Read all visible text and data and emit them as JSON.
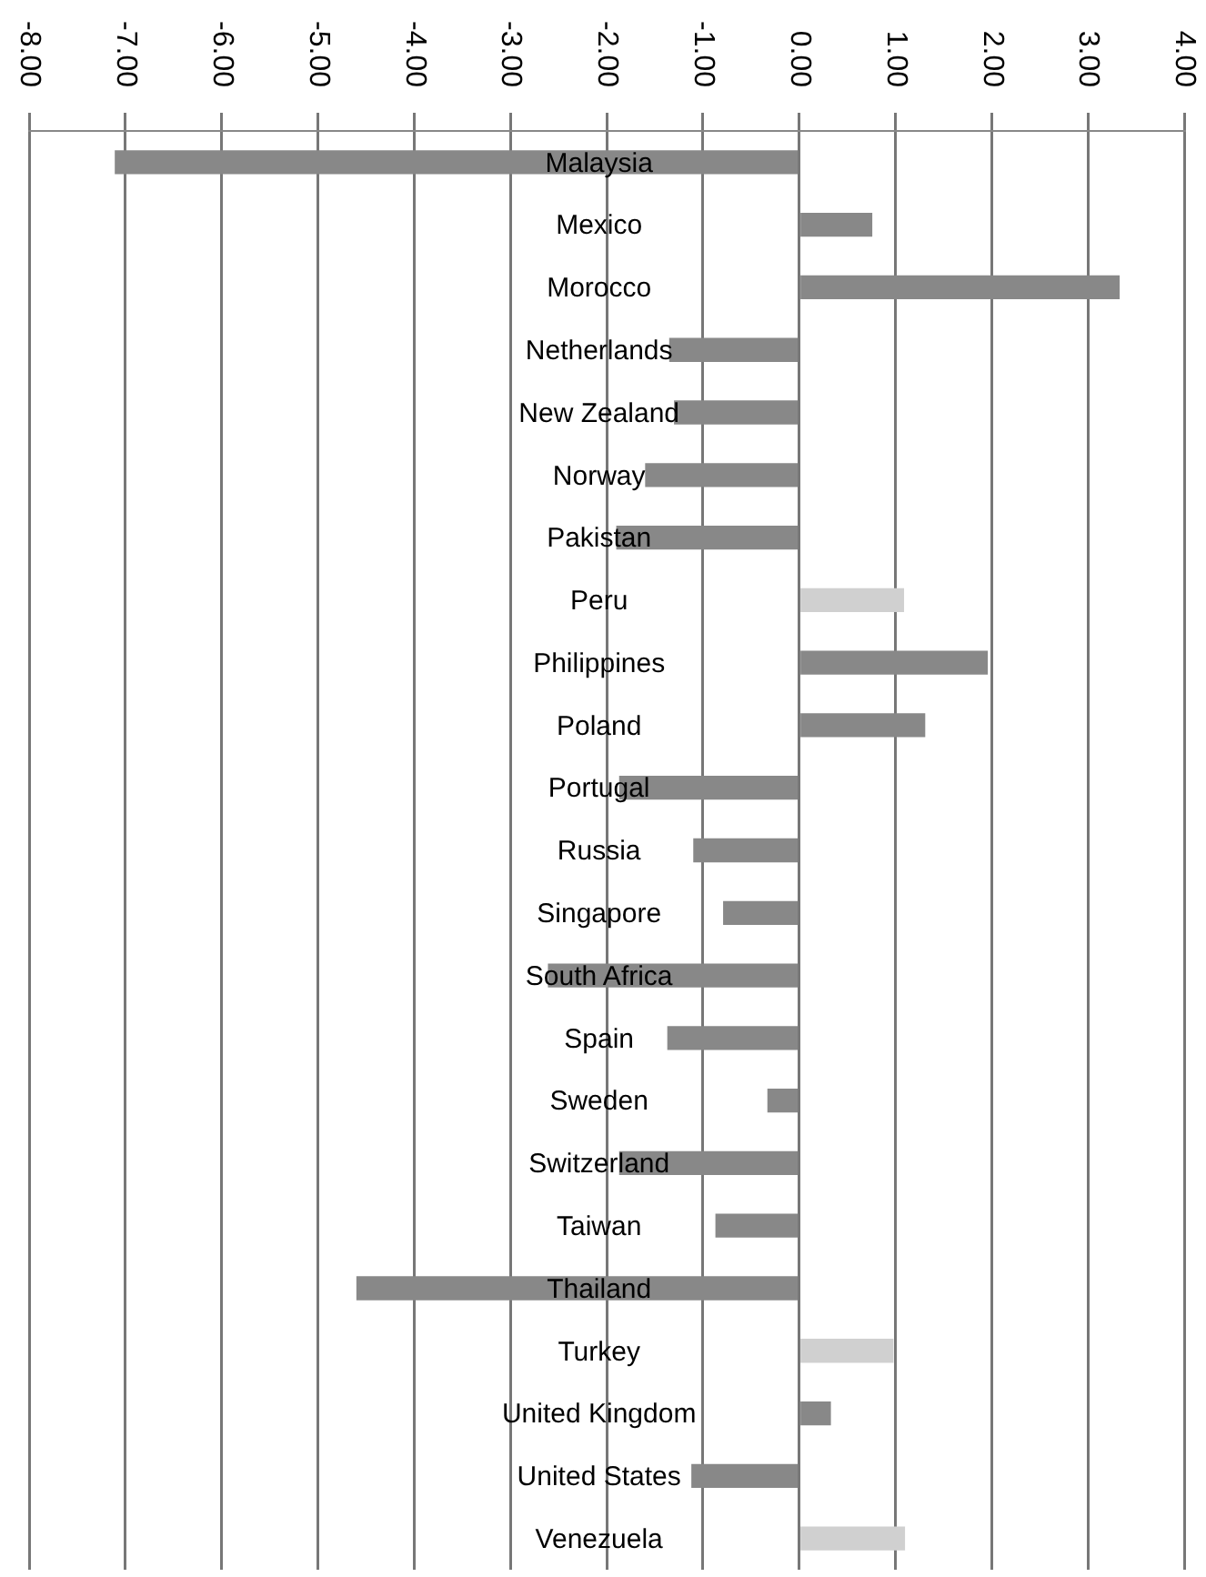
{
  "chart_data": {
    "type": "bar",
    "orientation": "horizontal",
    "categories": [
      "Malaysia",
      "Mexico",
      "Morocco",
      "Netherlands",
      "New Zealand",
      "Norway",
      "Pakistan",
      "Peru",
      "Philippines",
      "Poland",
      "Portugal",
      "Russia",
      "Singapore",
      "South Africa",
      "Spain",
      "Sweden",
      "Switzerland",
      "Taiwan",
      "Thailand",
      "Turkey",
      "United Kingdom",
      "United States",
      "Venezuela"
    ],
    "values": [
      -7.11,
      0.76,
      3.33,
      -1.35,
      -1.3,
      -1.6,
      -1.9,
      1.09,
      1.96,
      1.31,
      -1.87,
      -1.1,
      -0.79,
      -2.61,
      -1.37,
      -0.33,
      -1.87,
      -0.87,
      -4.6,
      0.98,
      0.33,
      -1.12,
      1.1
    ],
    "colors": [
      "#888888",
      "#888888",
      "#888888",
      "#888888",
      "#888888",
      "#888888",
      "#888888",
      "#d0d0d0",
      "#888888",
      "#888888",
      "#888888",
      "#888888",
      "#888888",
      "#888888",
      "#888888",
      "#888888",
      "#888888",
      "#888888",
      "#888888",
      "#d0d0d0",
      "#888888",
      "#888888",
      "#d0d0d0"
    ],
    "xlim": [
      -8,
      4
    ],
    "xticks": [
      {
        "value": -8,
        "label": "-8.00"
      },
      {
        "value": -7,
        "label": "-7.00"
      },
      {
        "value": -6,
        "label": "-6.00"
      },
      {
        "value": -5,
        "label": "-5.00"
      },
      {
        "value": -4,
        "label": "-4.00"
      },
      {
        "value": -3,
        "label": "-3.00"
      },
      {
        "value": -2,
        "label": "-2.00"
      },
      {
        "value": -1,
        "label": "-1.00"
      },
      {
        "value": 0,
        "label": "0.00"
      },
      {
        "value": 1,
        "label": "1.00"
      },
      {
        "value": 2,
        "label": "2.00"
      },
      {
        "value": 3,
        "label": "3.00"
      },
      {
        "value": 4,
        "label": "4.00"
      }
    ],
    "grid": "x",
    "legend": false
  }
}
